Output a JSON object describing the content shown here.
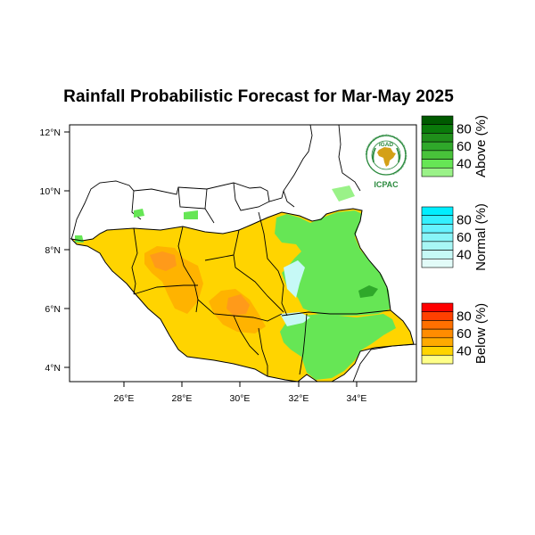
{
  "title": "Rainfall Probabilistic Forecast for Mar-May 2025",
  "colors": {
    "below_40": "#ffd400",
    "below_50": "#ffb300",
    "below_60": "#ff9a1a",
    "above_40": "#66e655",
    "above_60": "#2fa82a",
    "above_80": "#006600",
    "border": "#000000"
  },
  "axes": {
    "lat_ticks": [
      "12°N",
      "10°N",
      "8°N",
      "6°N",
      "4°N"
    ],
    "lon_ticks": [
      "26°E",
      "28°E",
      "30°E",
      "32°E",
      "34°E"
    ]
  },
  "legend": {
    "groups": [
      {
        "name": "Above (%)",
        "ticks": [
          "80",
          "60",
          "40"
        ],
        "colors": [
          "#005a00",
          "#0a7a0a",
          "#1f8f1a",
          "#2fa82a",
          "#48c23a",
          "#66e655",
          "#9af288"
        ]
      },
      {
        "name": "Normal (%)",
        "ticks": [
          "80",
          "60",
          "40"
        ],
        "colors": [
          "#00eeff",
          "#33f0ff",
          "#66f3ff",
          "#88f5f8",
          "#a8f7f5",
          "#c6f9f6",
          "#e2fbf8"
        ]
      },
      {
        "name": "Below (%)",
        "ticks": [
          "80",
          "60",
          "40"
        ],
        "colors": [
          "#ff0000",
          "#ff4000",
          "#ff7000",
          "#ff8c00",
          "#ffaa00",
          "#ffd400",
          "#ffff88"
        ]
      }
    ]
  },
  "logo": {
    "top_text": "IGAD",
    "bottom_text": "ICPAC",
    "ring_text": "INTERGOVERNMENTAL AUTHORITY ON DEVELOPMENT",
    "colors": {
      "green": "#2b8a3e",
      "gold": "#d4a017"
    }
  }
}
